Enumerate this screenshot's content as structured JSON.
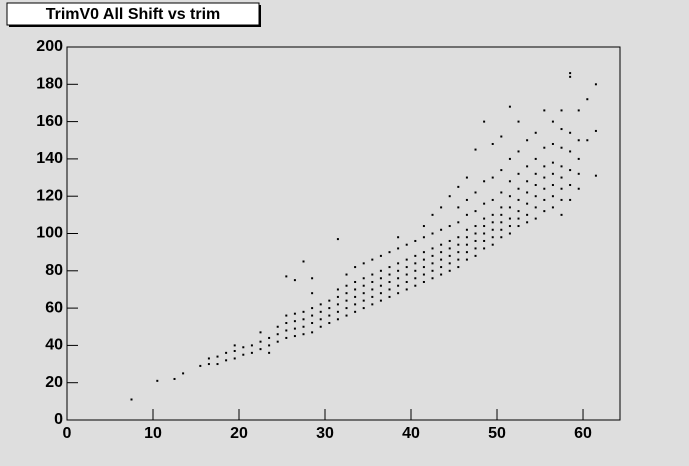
{
  "chart_data": {
    "type": "scatter",
    "title": "TrimV0 All Shift vs trim",
    "x": [
      7.5,
      10.5,
      12.5,
      13.5,
      15.5,
      16.5,
      16.5,
      17.5,
      17.5,
      18.5,
      18.5,
      19.5,
      19.5,
      19.5,
      20.5,
      20.5,
      21.5,
      21.5,
      22.5,
      22.5,
      22.5,
      23.5,
      23.5,
      23.5,
      24.5,
      24.5,
      24.5,
      25.5,
      25.5,
      25.5,
      25.5,
      25.5,
      26.5,
      26.5,
      26.5,
      26.5,
      26.5,
      27.5,
      27.5,
      27.5,
      27.5,
      27.5,
      28.5,
      28.5,
      28.5,
      28.5,
      28.5,
      28.5,
      29.5,
      29.5,
      29.5,
      29.5,
      30.5,
      30.5,
      30.5,
      30.5,
      31.5,
      31.5,
      31.5,
      31.5,
      31.5,
      31.5,
      32.5,
      32.5,
      32.5,
      32.5,
      32.5,
      32.5,
      33.5,
      33.5,
      33.5,
      33.5,
      33.5,
      33.5,
      34.5,
      34.5,
      34.5,
      34.5,
      34.5,
      34.5,
      35.5,
      35.5,
      35.5,
      35.5,
      35.5,
      35.5,
      36.5,
      36.5,
      36.5,
      36.5,
      36.5,
      36.5,
      37.5,
      37.5,
      37.5,
      37.5,
      37.5,
      37.5,
      38.5,
      38.5,
      38.5,
      38.5,
      38.5,
      38.5,
      38.5,
      39.5,
      39.5,
      39.5,
      39.5,
      39.5,
      39.5,
      40.5,
      40.5,
      40.5,
      40.5,
      40.5,
      40.5,
      41.5,
      41.5,
      41.5,
      41.5,
      41.5,
      41.5,
      41.5,
      42.5,
      42.5,
      42.5,
      42.5,
      42.5,
      42.5,
      42.5,
      43.5,
      43.5,
      43.5,
      43.5,
      43.5,
      43.5,
      43.5,
      44.5,
      44.5,
      44.5,
      44.5,
      44.5,
      44.5,
      44.5,
      45.5,
      45.5,
      45.5,
      45.5,
      45.5,
      45.5,
      45.5,
      45.5,
      46.5,
      46.5,
      46.5,
      46.5,
      46.5,
      46.5,
      46.5,
      46.5,
      47.5,
      47.5,
      47.5,
      47.5,
      47.5,
      47.5,
      47.5,
      47.5,
      48.5,
      48.5,
      48.5,
      48.5,
      48.5,
      48.5,
      48.5,
      48.5,
      49.5,
      49.5,
      49.5,
      49.5,
      49.5,
      49.5,
      49.5,
      49.5,
      50.5,
      50.5,
      50.5,
      50.5,
      50.5,
      50.5,
      50.5,
      50.5,
      51.5,
      51.5,
      51.5,
      51.5,
      51.5,
      51.5,
      51.5,
      51.5,
      52.5,
      52.5,
      52.5,
      52.5,
      52.5,
      52.5,
      52.5,
      52.5,
      53.5,
      53.5,
      53.5,
      53.5,
      53.5,
      53.5,
      53.5,
      54.5,
      54.5,
      54.5,
      54.5,
      54.5,
      54.5,
      54.5,
      55.5,
      55.5,
      55.5,
      55.5,
      55.5,
      55.5,
      55.5,
      56.5,
      56.5,
      56.5,
      56.5,
      56.5,
      56.5,
      56.5,
      57.5,
      57.5,
      57.5,
      57.5,
      57.5,
      57.5,
      57.5,
      57.5,
      58.5,
      58.5,
      58.5,
      58.5,
      58.5,
      58.5,
      58.5,
      59.5,
      59.5,
      59.5,
      59.5,
      59.5,
      60.5,
      60.5,
      61.5,
      61.5,
      61.5
    ],
    "values": [
      11,
      21,
      22,
      25,
      29,
      30,
      33,
      30,
      34,
      32,
      36,
      33,
      37,
      40,
      35,
      39,
      36,
      40,
      38,
      42,
      47,
      36,
      40,
      44,
      42,
      46,
      50,
      44,
      48,
      52,
      56,
      77,
      45,
      49,
      53,
      57,
      75,
      46,
      50,
      54,
      58,
      85,
      47,
      52,
      56,
      60,
      68,
      76,
      50,
      54,
      58,
      62,
      52,
      56,
      60,
      64,
      54,
      58,
      62,
      66,
      70,
      97,
      56,
      60,
      64,
      68,
      72,
      78,
      58,
      62,
      66,
      70,
      74,
      82,
      60,
      64,
      68,
      72,
      76,
      84,
      62,
      66,
      70,
      74,
      78,
      86,
      64,
      68,
      72,
      76,
      80,
      88,
      66,
      70,
      74,
      78,
      82,
      90,
      68,
      72,
      76,
      80,
      84,
      92,
      98,
      70,
      74,
      78,
      82,
      86,
      94,
      72,
      76,
      80,
      84,
      88,
      96,
      74,
      78,
      82,
      86,
      90,
      98,
      104,
      76,
      80,
      84,
      88,
      92,
      100,
      110,
      78,
      82,
      86,
      90,
      94,
      102,
      114,
      80,
      84,
      88,
      92,
      96,
      104,
      120,
      82,
      86,
      90,
      94,
      98,
      106,
      114,
      125,
      86,
      90,
      94,
      98,
      102,
      110,
      118,
      130,
      88,
      92,
      96,
      100,
      104,
      112,
      122,
      145,
      92,
      96,
      100,
      104,
      108,
      116,
      128,
      160,
      94,
      98,
      102,
      106,
      110,
      118,
      130,
      148,
      98,
      102,
      106,
      110,
      114,
      122,
      134,
      152,
      100,
      104,
      108,
      114,
      120,
      128,
      140,
      168,
      104,
      108,
      112,
      118,
      124,
      132,
      144,
      160,
      106,
      110,
      116,
      122,
      128,
      136,
      150,
      108,
      114,
      120,
      126,
      132,
      140,
      154,
      112,
      118,
      124,
      130,
      136,
      146,
      166,
      114,
      120,
      126,
      132,
      138,
      148,
      160,
      110,
      118,
      124,
      130,
      136,
      146,
      156,
      166,
      118,
      126,
      134,
      144,
      154,
      186,
      184,
      124,
      132,
      140,
      150,
      166,
      150,
      172,
      131,
      155,
      180
    ],
    "color": "#000000",
    "xlim": [
      0,
      64.3
    ],
    "xticks": [
      0,
      10,
      20,
      30,
      40,
      50,
      60
    ],
    "ylim": [
      0,
      200
    ],
    "yticks": [
      0,
      20,
      40,
      60,
      80,
      100,
      120,
      140,
      160,
      180,
      200
    ]
  }
}
